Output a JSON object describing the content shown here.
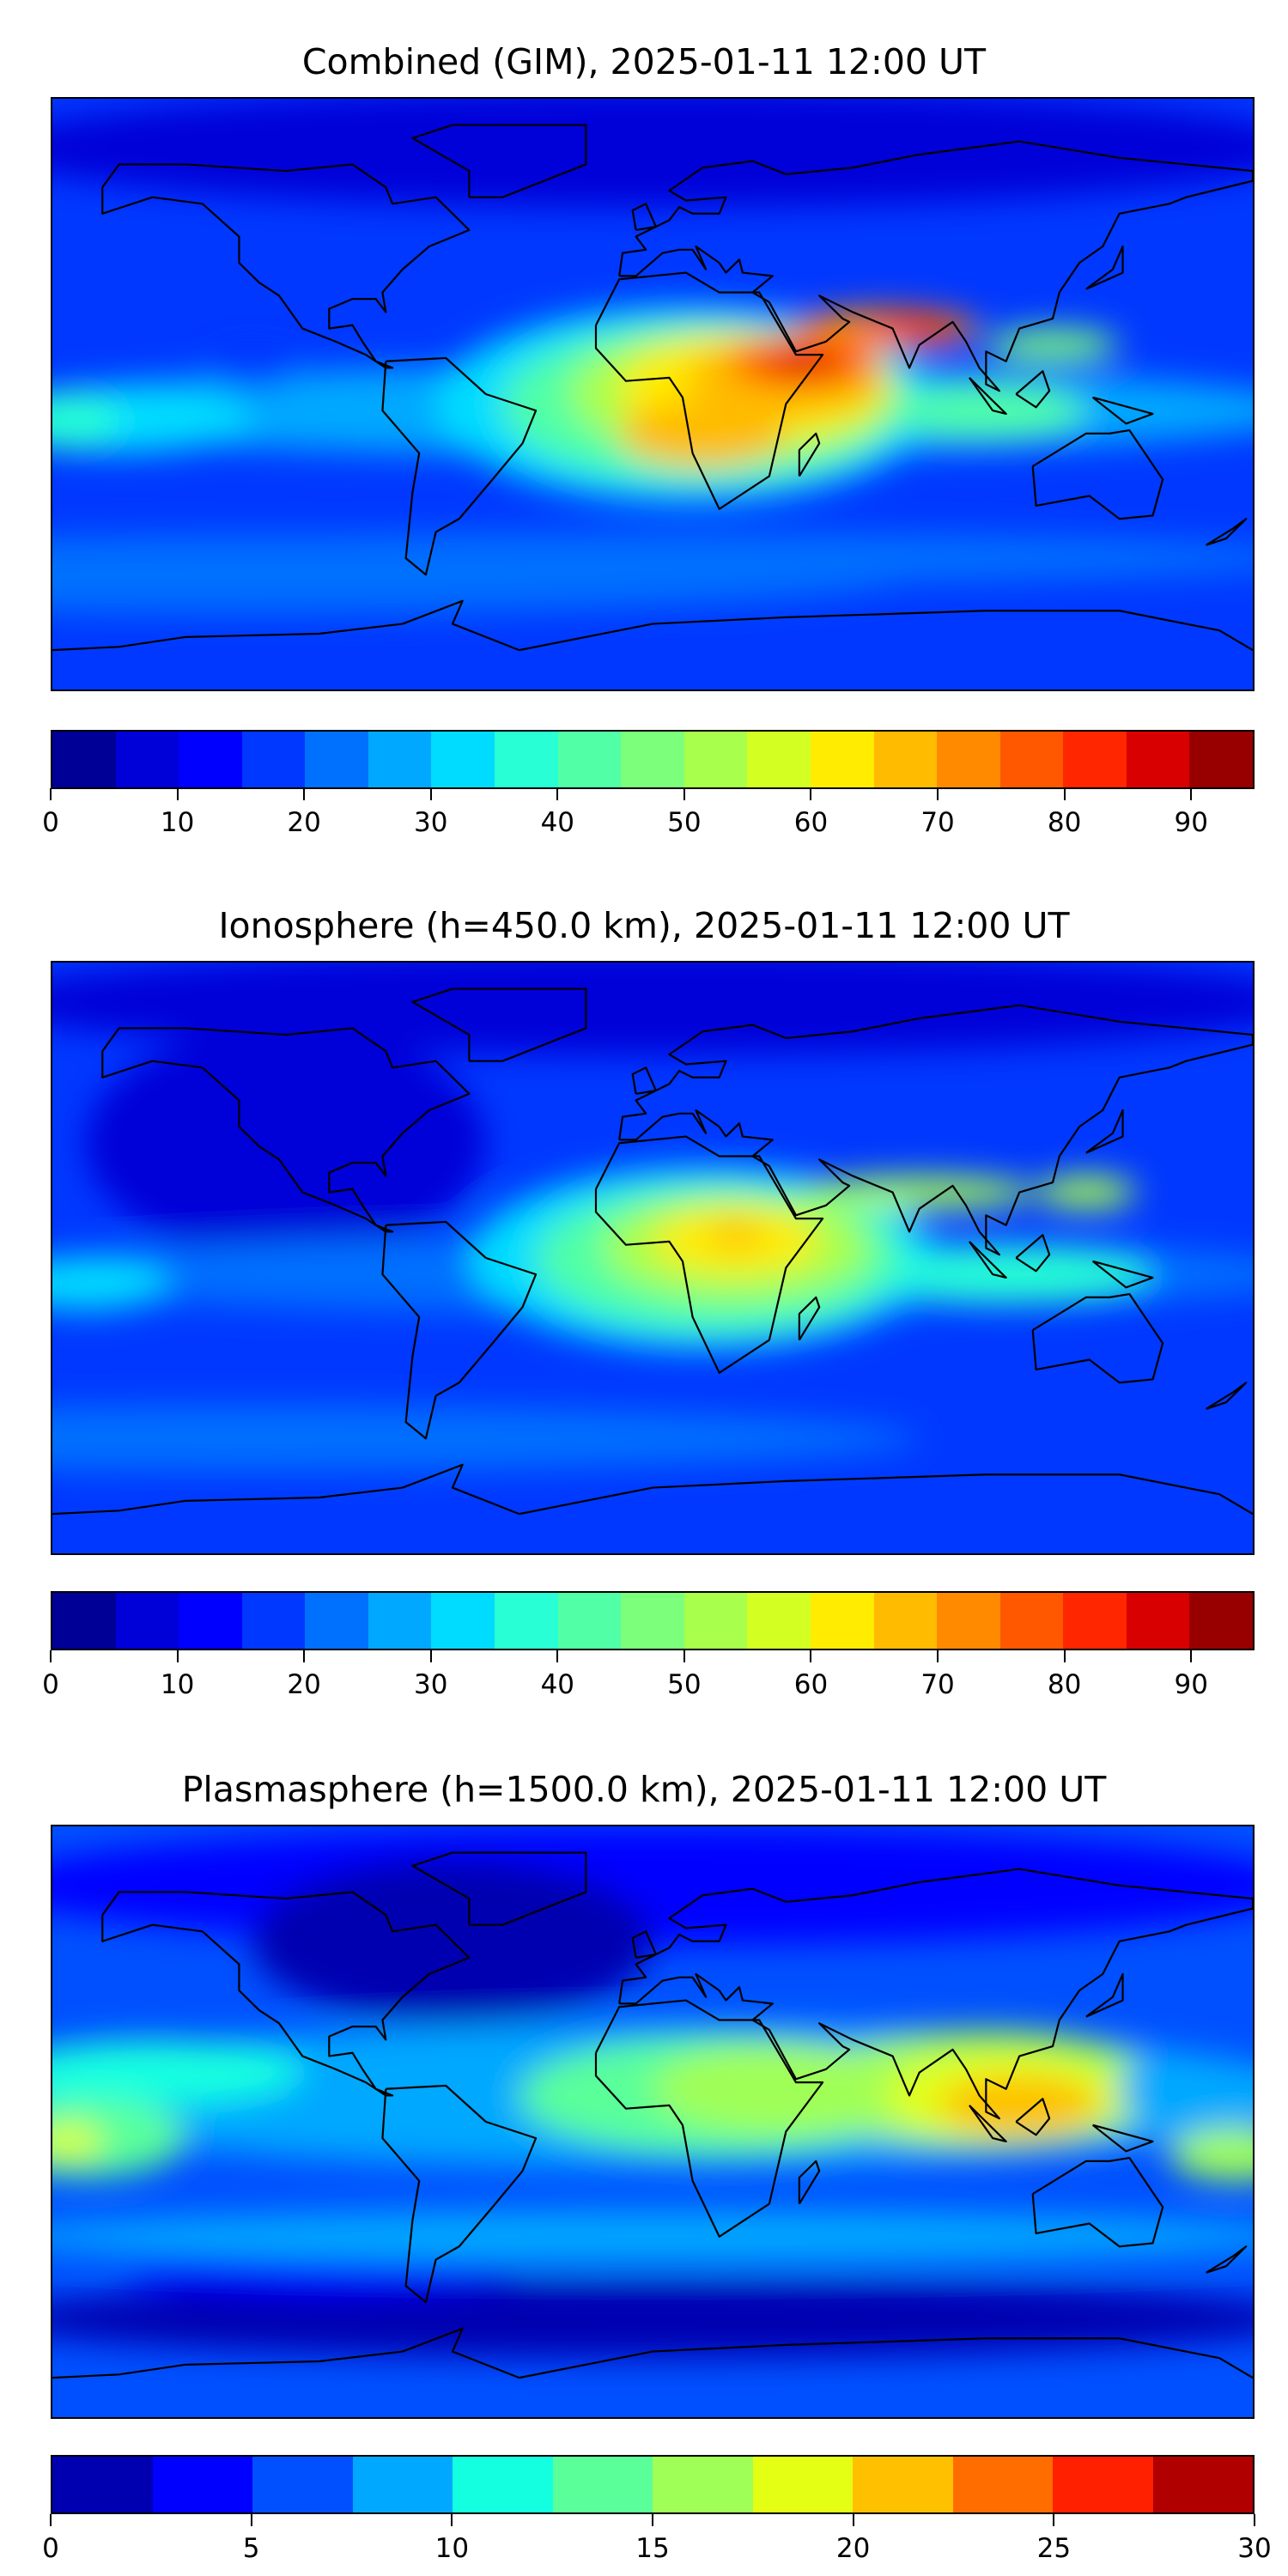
{
  "chart_data": [
    {
      "type": "heatmap",
      "title": "Combined (GIM), 2025-01-11 12:00 UT",
      "xlabel": "",
      "ylabel": "",
      "colorbar": {
        "levels_min": 0,
        "levels_max": 95,
        "step": 5,
        "ticks": [
          0,
          10,
          20,
          30,
          40,
          50,
          60,
          70,
          80,
          90
        ],
        "colors": [
          "#000097",
          "#0000d8",
          "#0000ff",
          "#0038ff",
          "#0070ff",
          "#00a8ff",
          "#00dcff",
          "#28ffd4",
          "#50ffa6",
          "#7cff7a",
          "#a8ff4c",
          "#d4ff22",
          "#ffec00",
          "#ffbb00",
          "#ff8a00",
          "#ff5800",
          "#ff2600",
          "#d80000",
          "#980000"
        ]
      },
      "field_max_approx": 85
    },
    {
      "type": "heatmap",
      "title": "Ionosphere  (h=450.0 km), 2025-01-11 12:00 UT",
      "xlabel": "",
      "ylabel": "",
      "colorbar": {
        "levels_min": 0,
        "levels_max": 95,
        "step": 5,
        "ticks": [
          0,
          10,
          20,
          30,
          40,
          50,
          60,
          70,
          80,
          90
        ],
        "colors": [
          "#000097",
          "#0000d8",
          "#0000ff",
          "#0038ff",
          "#0070ff",
          "#00a8ff",
          "#00dcff",
          "#28ffd4",
          "#50ffa6",
          "#7cff7a",
          "#a8ff4c",
          "#d4ff22",
          "#ffec00",
          "#ffbb00",
          "#ff8a00",
          "#ff5800",
          "#ff2600",
          "#d80000",
          "#980000"
        ]
      },
      "field_max_approx": 70
    },
    {
      "type": "heatmap",
      "title": "Plasmasphere (h=1500.0 km), 2025-01-11 12:00 UT",
      "xlabel": "",
      "ylabel": "",
      "colorbar": {
        "levels_min": 0,
        "levels_max": 30,
        "step": 2.5,
        "ticks": [
          0,
          5,
          10,
          15,
          20,
          25,
          30
        ],
        "colors": [
          "#0000b0",
          "#0000ff",
          "#0050ff",
          "#00a8ff",
          "#14ffe0",
          "#5aff9a",
          "#a0ff56",
          "#e4ff14",
          "#ffc000",
          "#ff6c00",
          "#ff2000",
          "#b00000"
        ]
      },
      "field_max_approx": 22.5
    }
  ]
}
